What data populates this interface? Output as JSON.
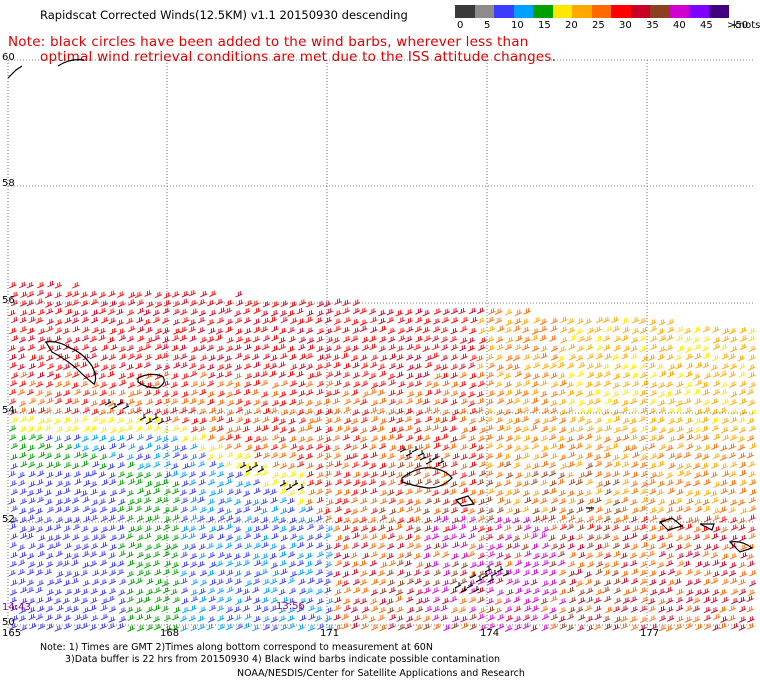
{
  "title": "Rapidscat Corrected Winds(12.5KM) v1.1 20150930 descending",
  "note_line1": "Note: black circles have been added to the wind barbs, wherever less than",
  "note_line2": "optimal wind retrieval conditions are met due to the ISS attitude changes.",
  "colorbar": {
    "colors": [
      "#3a3a3a",
      "#8c8c8c",
      "#3c3cff",
      "#00a0ff",
      "#00a000",
      "#ffe800",
      "#ffa800",
      "#ff6a00",
      "#ff0000",
      "#c80028",
      "#8c4020",
      "#d000d0",
      "#8000ff",
      "#400080"
    ],
    "labels": [
      "0",
      "5",
      "10",
      "15",
      "20",
      "25",
      "30",
      "35",
      "40",
      "45",
      ">50"
    ],
    "units": "knots"
  },
  "lat_labels": [
    "60",
    "58",
    "56",
    "54",
    "52",
    "50"
  ],
  "lon_labels": [
    "165",
    "168",
    "171",
    "174",
    "177"
  ],
  "time_labels": [
    "14:43",
    "13:56"
  ],
  "footer": {
    "line1": "Note: 1) Times are GMT 2)Times along bottom correspond to measurement at 60N",
    "line2": "3)Data buffer is 22 hrs from 20150930 4) Black wind barbs indicate possible contamination",
    "line3": "NOAA/NESDIS/Center for Satellite Applications and Research"
  }
}
